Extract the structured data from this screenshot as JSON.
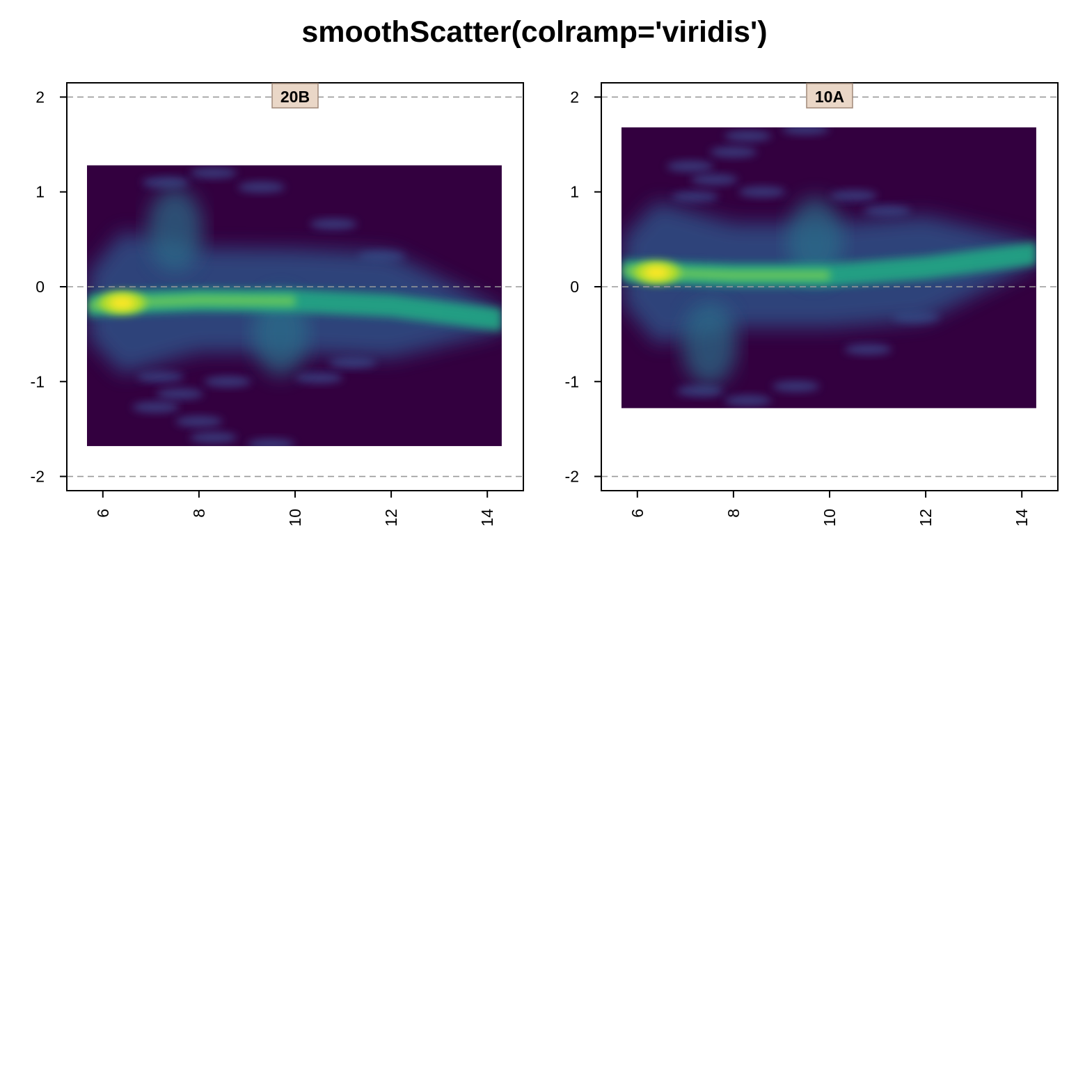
{
  "title": "smoothScatter(colramp='viridis')",
  "colors": {
    "viridis_low": "#440154",
    "viridis_mid": "#21918c",
    "viridis_high": "#fde725",
    "background_density": "#33003f",
    "refline": "#999999",
    "strip_fill": "#ead7c7",
    "strip_border": "#a08878"
  },
  "chart_data": [
    {
      "type": "heatmap",
      "panel_label": "20B",
      "xlabel": "",
      "ylabel": "",
      "xlim": [
        5.25,
        14.75
      ],
      "ylim": [
        -2.15,
        2.15
      ],
      "xticks": [
        "6",
        "8",
        "10",
        "12",
        "14"
      ],
      "yticks": [
        "-2",
        "-1",
        "0",
        "1",
        "2"
      ],
      "hlines": [
        -2,
        0,
        2
      ],
      "density_extent": {
        "x": [
          5.67,
          14.3
        ],
        "y": [
          -1.68,
          1.28
        ]
      },
      "peak": {
        "x": 6.4,
        "y": -0.17
      },
      "trend": [
        [
          5.7,
          -0.2
        ],
        [
          6.4,
          -0.17
        ],
        [
          8,
          -0.14
        ],
        [
          10,
          -0.15
        ],
        [
          12,
          -0.2
        ],
        [
          14.3,
          -0.35
        ]
      ],
      "spread_center": [
        [
          7.5,
          0.6
        ],
        [
          9.7,
          -0.5
        ]
      ],
      "outlier_clusters": [
        [
          7.3,
          1.1
        ],
        [
          8.3,
          1.2
        ],
        [
          9.3,
          1.05
        ],
        [
          10.8,
          0.66
        ],
        [
          11.8,
          0.32
        ],
        [
          7.2,
          -0.95
        ],
        [
          7.6,
          -1.13
        ],
        [
          7.1,
          -1.27
        ],
        [
          8,
          -1.42
        ],
        [
          8.3,
          -1.59
        ],
        [
          9.5,
          -1.66
        ],
        [
          8.6,
          -1
        ],
        [
          10.5,
          -0.96
        ],
        [
          11.2,
          -0.8
        ]
      ]
    },
    {
      "type": "heatmap",
      "panel_label": "10A",
      "xlabel": "",
      "ylabel": "",
      "xlim": [
        5.25,
        14.75
      ],
      "ylim": [
        -2.15,
        2.15
      ],
      "xticks": [
        "6",
        "8",
        "10",
        "12",
        "14"
      ],
      "yticks": [
        "-2",
        "-1",
        "0",
        "1",
        "2"
      ],
      "hlines": [
        -2,
        0,
        2
      ],
      "density_extent": {
        "x": [
          5.67,
          14.3
        ],
        "y": [
          -1.28,
          1.68
        ]
      },
      "peak": {
        "x": 6.4,
        "y": 0.15
      },
      "trend": [
        [
          5.7,
          0.17
        ],
        [
          6.4,
          0.15
        ],
        [
          8,
          0.12
        ],
        [
          10,
          0.12
        ],
        [
          12,
          0.2
        ],
        [
          14.3,
          0.35
        ]
      ],
      "spread_center": [
        [
          7.5,
          -0.6
        ],
        [
          9.7,
          0.5
        ]
      ],
      "outlier_clusters": [
        [
          7.3,
          -1.1
        ],
        [
          8.3,
          -1.2
        ],
        [
          9.3,
          -1.05
        ],
        [
          10.8,
          -0.66
        ],
        [
          11.8,
          -0.32
        ],
        [
          7.2,
          0.95
        ],
        [
          7.6,
          1.13
        ],
        [
          7.1,
          1.27
        ],
        [
          8,
          1.42
        ],
        [
          8.3,
          1.59
        ],
        [
          9.5,
          1.66
        ],
        [
          8.6,
          1
        ],
        [
          10.5,
          0.96
        ],
        [
          11.2,
          0.8
        ]
      ]
    }
  ]
}
